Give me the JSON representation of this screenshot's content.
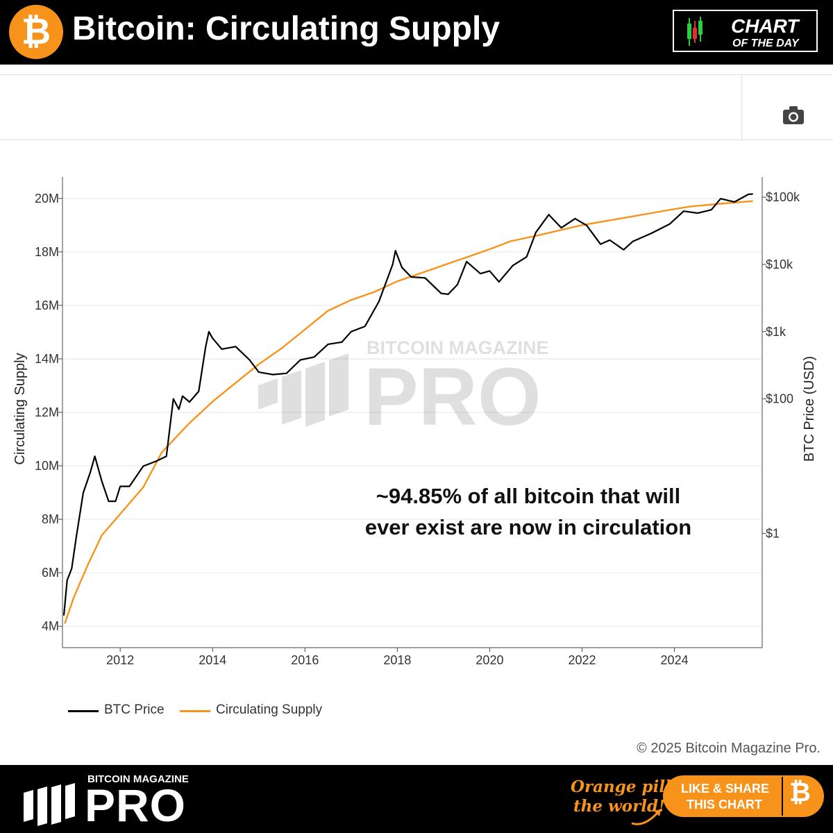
{
  "header": {
    "title": "Bitcoin: Circulating Supply",
    "logo_glyph": "₿",
    "badge_line1": "CHART",
    "badge_line2": "OF THE DAY"
  },
  "toolbar": {
    "camera_icon": "camera-icon"
  },
  "annotation": {
    "line1": "~94.85% of all bitcoin that will",
    "line2": "ever exist are now in circulation"
  },
  "watermark": {
    "small": "BITCOIN MAGAZINE",
    "large": "PRO"
  },
  "legend": {
    "price_label": "BTC Price",
    "supply_label": "Circulating Supply"
  },
  "copyright": "© 2025 Bitcoin Magazine Pro.",
  "footer": {
    "brand_small": "BITCOIN MAGAZINE",
    "brand_large": "PRO",
    "slogan_line1": "Orange pill",
    "slogan_line2": "the world!",
    "cta_line1": "LIKE & SHARE",
    "cta_line2": "THIS CHART",
    "cta_glyph": "₿"
  },
  "colors": {
    "supply": "#f7931a",
    "price": "#000000",
    "brand_orange": "#f7931a"
  },
  "chart_data": {
    "type": "line",
    "xlabel": "",
    "ylabel": "Circulating Supply",
    "y2label": "BTC Price (USD)",
    "x_ticks": [
      "2012",
      "2014",
      "2016",
      "2018",
      "2020",
      "2022",
      "2024"
    ],
    "y_ticks": [
      "4M",
      "6M",
      "8M",
      "10M",
      "12M",
      "14M",
      "16M",
      "18M",
      "20M"
    ],
    "y2_ticks": [
      "$1",
      "$100",
      "$1k",
      "$10k",
      "$100k"
    ],
    "xlim": [
      2010.75,
      2025.9
    ],
    "ylim": [
      3.2,
      20.8
    ],
    "y2_scale": "log",
    "y2lim_log10": [
      -1.7,
      5.3
    ],
    "grid": true,
    "legend_position": "bottom-left",
    "series": [
      {
        "name": "Circulating Supply",
        "axis": "left",
        "x": [
          2010.8,
          2011.0,
          2011.3,
          2011.6,
          2012.0,
          2012.5,
          2012.9,
          2013.5,
          2014.0,
          2014.5,
          2015.0,
          2015.5,
          2016.0,
          2016.5,
          2017.0,
          2017.5,
          2018.0,
          2018.5,
          2019.0,
          2019.5,
          2020.0,
          2020.45,
          2021.0,
          2021.5,
          2022.0,
          2022.5,
          2023.0,
          2023.5,
          2024.0,
          2024.35,
          2025.0,
          2025.7
        ],
        "y": [
          4.1,
          5.1,
          6.3,
          7.4,
          8.2,
          9.2,
          10.5,
          11.6,
          12.4,
          13.1,
          13.8,
          14.4,
          15.1,
          15.8,
          16.2,
          16.5,
          16.9,
          17.2,
          17.5,
          17.8,
          18.1,
          18.4,
          18.6,
          18.8,
          19.0,
          19.15,
          19.3,
          19.45,
          19.6,
          19.7,
          19.8,
          19.9
        ]
      },
      {
        "name": "BTC Price",
        "axis": "right",
        "x": [
          2010.78,
          2010.85,
          2010.95,
          2011.05,
          2011.2,
          2011.35,
          2011.45,
          2011.6,
          2011.75,
          2011.9,
          2012.0,
          2012.2,
          2012.5,
          2012.8,
          2013.0,
          2013.15,
          2013.27,
          2013.35,
          2013.5,
          2013.7,
          2013.85,
          2013.92,
          2014.0,
          2014.2,
          2014.5,
          2014.8,
          2015.0,
          2015.3,
          2015.6,
          2015.9,
          2016.2,
          2016.5,
          2016.8,
          2017.0,
          2017.3,
          2017.6,
          2017.9,
          2017.96,
          2018.1,
          2018.3,
          2018.6,
          2018.95,
          2019.1,
          2019.3,
          2019.5,
          2019.8,
          2020.0,
          2020.2,
          2020.5,
          2020.8,
          2021.0,
          2021.28,
          2021.55,
          2021.85,
          2022.1,
          2022.4,
          2022.6,
          2022.9,
          2023.1,
          2023.5,
          2023.9,
          2024.2,
          2024.5,
          2024.8,
          2025.0,
          2025.3,
          2025.6,
          2025.7
        ],
        "y": [
          0.06,
          0.2,
          0.3,
          0.9,
          4,
          8,
          14,
          6,
          3,
          3,
          5,
          5,
          10,
          12,
          14,
          100,
          70,
          110,
          90,
          130,
          600,
          1000,
          800,
          550,
          600,
          380,
          250,
          230,
          240,
          380,
          420,
          650,
          700,
          1000,
          1200,
          2800,
          10000,
          16000,
          9000,
          6500,
          6300,
          3700,
          3600,
          5000,
          11000,
          7300,
          8000,
          5500,
          9600,
          13000,
          30000,
          55000,
          35000,
          48000,
          38000,
          20000,
          23000,
          16500,
          22000,
          29000,
          40000,
          62000,
          58000,
          65000,
          95000,
          85000,
          110000,
          112000
        ]
      }
    ]
  }
}
